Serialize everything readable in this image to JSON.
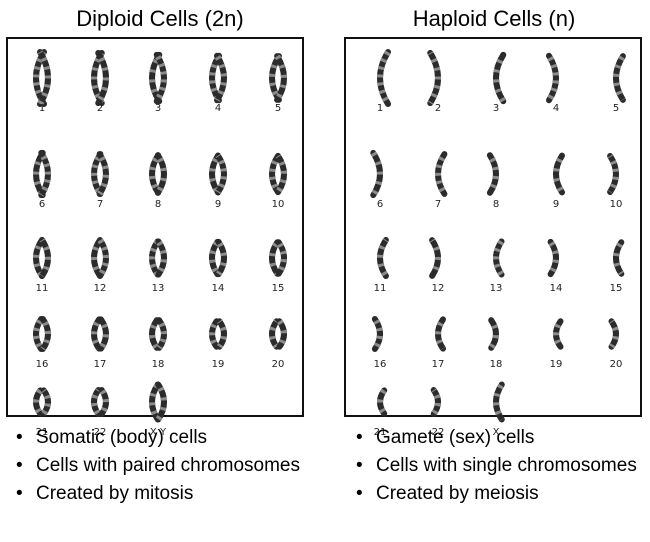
{
  "diploid": {
    "title": "Diploid Cells (2n)",
    "chromosome_labels": [
      "1",
      "2",
      "3",
      "4",
      "5",
      "6",
      "7",
      "8",
      "9",
      "10",
      "11",
      "12",
      "13",
      "14",
      "15",
      "16",
      "17",
      "18",
      "19",
      "20",
      "21",
      "22",
      "X Y"
    ],
    "bullets": [
      "Somatic (body) cells",
      "Cells with paired chromosomes",
      "Created by mitosis"
    ]
  },
  "haploid": {
    "title": "Haploid Cells (n)",
    "chromosome_labels": [
      "1",
      "2",
      "3",
      "4",
      "5",
      "6",
      "7",
      "8",
      "9",
      "10",
      "11",
      "12",
      "13",
      "14",
      "15",
      "16",
      "17",
      "18",
      "19",
      "20",
      "21",
      "22",
      "X"
    ],
    "bullets": [
      "Gamete (sex) cells",
      "Cells with single chromosomes",
      "Created by meiosis"
    ]
  },
  "colors": {
    "chromosome_band": "#2b2b2b",
    "chromosome_light": "#8a8a8a",
    "border": "#111111"
  }
}
